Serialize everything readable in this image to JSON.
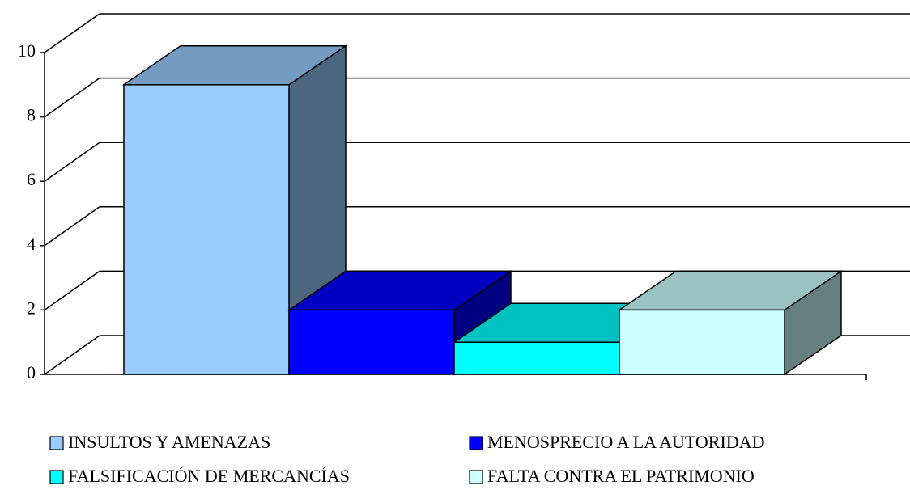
{
  "chart_data": {
    "type": "bar3d",
    "categories": [
      null
    ],
    "series": [
      {
        "name": "INSULTOS Y AMENAZAS",
        "color": "#99ccff",
        "values": [
          9
        ]
      },
      {
        "name": "MENOSPRECIO A LA AUTORIDAD",
        "color": "#0000ff",
        "values": [
          2
        ]
      },
      {
        "name": "FALSIFICACIÓN DE MERCANCÍAS",
        "color": "#00ffff",
        "values": [
          1
        ]
      },
      {
        "name": "FALTA CONTRA EL PATRIMONIO",
        "color": "#ccffff",
        "values": [
          2
        ]
      }
    ],
    "ylim": [
      0,
      10
    ],
    "yticks": [
      0,
      2,
      4,
      6,
      8,
      10
    ],
    "grid": true,
    "legend": "bottom"
  }
}
